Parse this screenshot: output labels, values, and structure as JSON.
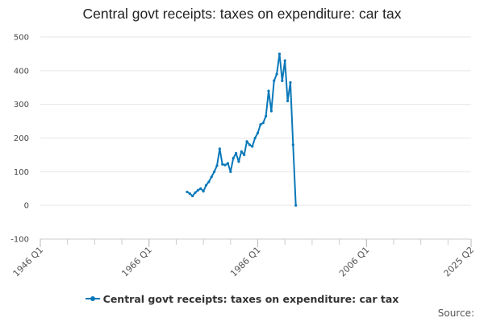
{
  "chart_data": {
    "type": "line",
    "title": "Central govt receipts: taxes on expenditure: car tax",
    "xlabel": "",
    "ylabel": "",
    "y_ticks": [
      "500",
      "400",
      "300",
      "200",
      "100",
      "0",
      "-100"
    ],
    "ylim": [
      -100,
      500
    ],
    "x_tick_labels": [
      "1946 Q1",
      "1966 Q1",
      "1986 Q1",
      "2006 Q1",
      "2025 Q2"
    ],
    "grid": true,
    "legend_position": "bottom",
    "series": [
      {
        "name": "Central govt receipts: taxes on expenditure: car tax",
        "color": "#0a78b9",
        "x": [
          "1973 Q1",
          "1973 Q3",
          "1974 Q1",
          "1974 Q3",
          "1975 Q1",
          "1975 Q3",
          "1976 Q1",
          "1976 Q3",
          "1977 Q1",
          "1977 Q3",
          "1978 Q1",
          "1978 Q3",
          "1979 Q1",
          "1979 Q3",
          "1980 Q1",
          "1980 Q3",
          "1981 Q1",
          "1981 Q3",
          "1982 Q1",
          "1982 Q3",
          "1983 Q1",
          "1983 Q3",
          "1984 Q1",
          "1984 Q3",
          "1985 Q1",
          "1985 Q3",
          "1986 Q1",
          "1986 Q3",
          "1987 Q1",
          "1987 Q3",
          "1988 Q1",
          "1988 Q3",
          "1989 Q1",
          "1989 Q3",
          "1990 Q1",
          "1990 Q3",
          "1991 Q1",
          "1991 Q3",
          "1992 Q1",
          "1992 Q3",
          "1993 Q1"
        ],
        "values": [
          40,
          35,
          28,
          38,
          45,
          50,
          42,
          60,
          70,
          85,
          100,
          118,
          168,
          122,
          120,
          125,
          100,
          140,
          155,
          130,
          160,
          150,
          190,
          180,
          175,
          200,
          215,
          240,
          245,
          265,
          340,
          280,
          370,
          390,
          450,
          370,
          430,
          310,
          365,
          180,
          0
        ]
      }
    ]
  },
  "source_label": "Source:"
}
